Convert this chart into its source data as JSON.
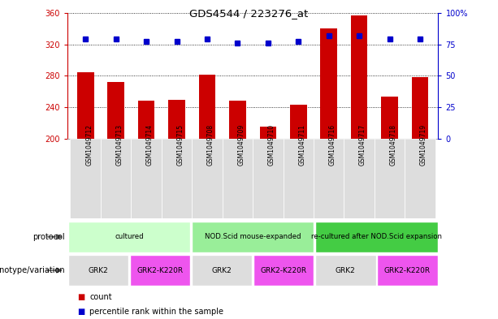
{
  "title": "GDS4544 / 223276_at",
  "samples": [
    "GSM1049712",
    "GSM1049713",
    "GSM1049714",
    "GSM1049715",
    "GSM1049708",
    "GSM1049709",
    "GSM1049710",
    "GSM1049711",
    "GSM1049716",
    "GSM1049717",
    "GSM1049718",
    "GSM1049719"
  ],
  "counts": [
    284,
    272,
    248,
    249,
    281,
    248,
    215,
    243,
    340,
    357,
    254,
    278
  ],
  "percentile_ranks": [
    79,
    79,
    77,
    77,
    79,
    76,
    76,
    77,
    82,
    82,
    79,
    79
  ],
  "y_min": 200,
  "y_max": 360,
  "y_ticks_left": [
    200,
    240,
    280,
    320,
    360
  ],
  "y_ticks_right": [
    0,
    25,
    50,
    75,
    100
  ],
  "bar_color": "#CC0000",
  "dot_color": "#0000CC",
  "grid_color": "#000000",
  "protocol_row": {
    "label": "protocol",
    "groups": [
      {
        "text": "cultured",
        "color": "#CCFFCC",
        "span": [
          0,
          3
        ]
      },
      {
        "text": "NOD.Scid mouse-expanded",
        "color": "#99EE99",
        "span": [
          4,
          7
        ]
      },
      {
        "text": "re-cultured after NOD.Scid expansion",
        "color": "#44CC44",
        "span": [
          8,
          11
        ]
      }
    ]
  },
  "genotype_row": {
    "label": "genotype/variation",
    "groups": [
      {
        "text": "GRK2",
        "color": "#DDDDDD",
        "span": [
          0,
          1
        ]
      },
      {
        "text": "GRK2-K220R",
        "color": "#EE55EE",
        "span": [
          2,
          3
        ]
      },
      {
        "text": "GRK2",
        "color": "#DDDDDD",
        "span": [
          4,
          5
        ]
      },
      {
        "text": "GRK2-K220R",
        "color": "#EE55EE",
        "span": [
          6,
          7
        ]
      },
      {
        "text": "GRK2",
        "color": "#DDDDDD",
        "span": [
          8,
          9
        ]
      },
      {
        "text": "GRK2-K220R",
        "color": "#EE55EE",
        "span": [
          10,
          11
        ]
      }
    ]
  },
  "legend_count_color": "#CC0000",
  "legend_dot_color": "#0000CC",
  "axis_left_color": "#CC0000",
  "axis_right_color": "#0000CC"
}
